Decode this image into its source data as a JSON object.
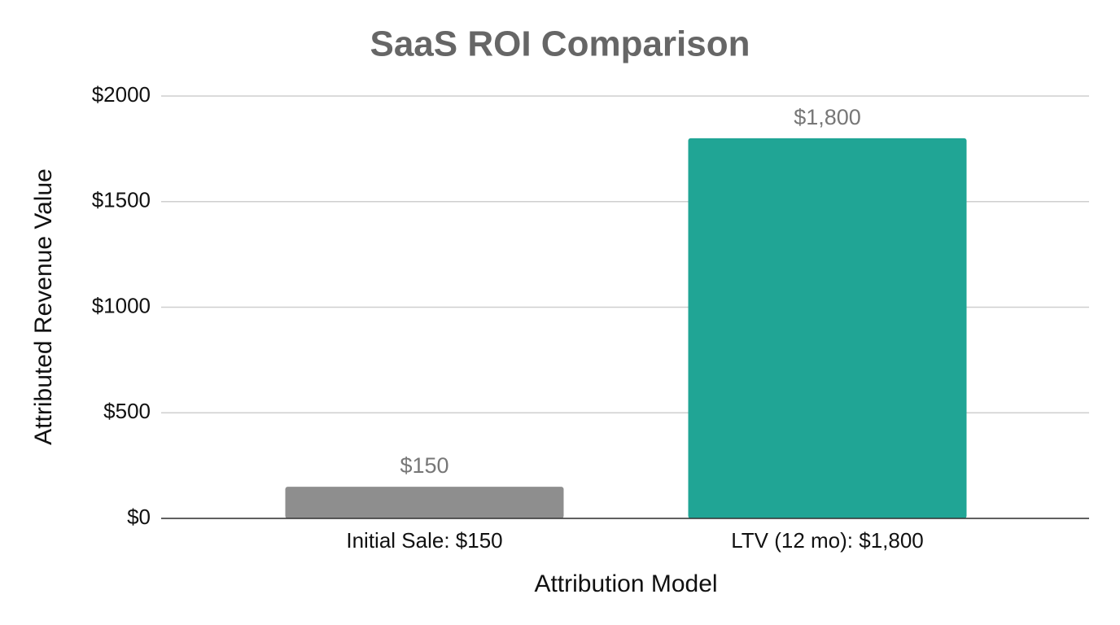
{
  "chart_data": {
    "type": "bar",
    "title": "SaaS ROI Comparison",
    "x_label": "Attribution Model",
    "y_label": "Attributed Revenue Value",
    "categories": [
      "Initial Sale: $150",
      "LTV (12 mo): $1,800"
    ],
    "values": [
      150,
      1800
    ],
    "value_labels": [
      "$150",
      "$1,800"
    ],
    "colors": [
      "#8e8e8e",
      "#20a595"
    ],
    "ylim": [
      0,
      2000
    ],
    "yticks": [
      {
        "value": 0,
        "label": "$0"
      },
      {
        "value": 500,
        "label": "$500"
      },
      {
        "value": 1000,
        "label": "$1000"
      },
      {
        "value": 1500,
        "label": "$1500"
      },
      {
        "value": 2000,
        "label": "$2000"
      }
    ],
    "grid": true
  }
}
